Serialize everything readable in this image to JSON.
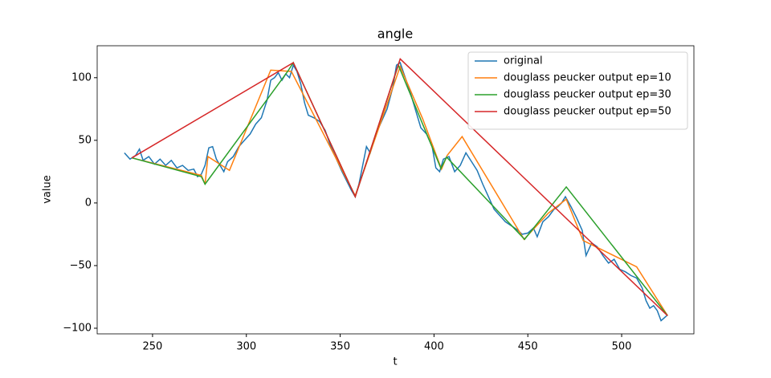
{
  "chart_data": {
    "type": "line",
    "title": "angle",
    "x_label": "t",
    "y_label": "value",
    "xlim": [
      220.5,
      538.5
    ],
    "ylim": [
      -104.5,
      125.5
    ],
    "xticks": [
      250,
      300,
      350,
      400,
      450,
      500
    ],
    "yticks": [
      {
        "value": -100,
        "label": "−100"
      },
      {
        "value": -50,
        "label": "−50"
      },
      0,
      50,
      100
    ],
    "legend": "upper right",
    "series": [
      {
        "name": "original",
        "color": "#1f77b4",
        "x": [
          235,
          238,
          241,
          243,
          245,
          248,
          251,
          254,
          257,
          260,
          263,
          266,
          269,
          272,
          274,
          276,
          278,
          280,
          282,
          284,
          286,
          288,
          290,
          293,
          296,
          299,
          302,
          305,
          308,
          311,
          313,
          315,
          317,
          319,
          321,
          323,
          325,
          327,
          329,
          331,
          333,
          336,
          339,
          342,
          345,
          348,
          351,
          354,
          356,
          358,
          360,
          362,
          364,
          366,
          369,
          372,
          375,
          378,
          380,
          382,
          384,
          387,
          390,
          393,
          396,
          399,
          401,
          403,
          405,
          408,
          411,
          414,
          417,
          420,
          423,
          426,
          429,
          432,
          435,
          438,
          441,
          444,
          447,
          450,
          453,
          455,
          458,
          461,
          464,
          466,
          468,
          470,
          473,
          476,
          479,
          481,
          484,
          487,
          490,
          493,
          496,
          499,
          502,
          505,
          508,
          511,
          513,
          515,
          517,
          519,
          521,
          524
        ],
        "values": [
          40,
          35,
          38,
          43,
          34,
          37,
          31,
          35,
          30,
          34,
          28,
          30,
          26,
          27,
          21,
          23,
          30,
          44,
          45,
          35,
          30,
          25,
          33,
          37,
          45,
          50,
          55,
          63,
          68,
          82,
          98,
          100,
          104,
          98,
          103,
          100,
          110,
          105,
          95,
          80,
          70,
          68,
          65,
          58,
          45,
          35,
          25,
          16,
          10,
          5,
          15,
          30,
          45,
          40,
          55,
          65,
          75,
          92,
          110,
          112,
          103,
          90,
          75,
          60,
          55,
          45,
          28,
          25,
          35,
          37,
          25,
          30,
          40,
          33,
          26,
          15,
          5,
          -5,
          -10,
          -15,
          -18,
          -21,
          -25,
          -24,
          -20,
          -27,
          -15,
          -11,
          -5,
          -3,
          0,
          5,
          -3,
          -12,
          -22,
          -42,
          -32,
          -35,
          -42,
          -48,
          -45,
          -53,
          -55,
          -58,
          -60,
          -68,
          -78,
          -84,
          -82,
          -86,
          -94,
          -90
        ]
      },
      {
        "name": "douglass peucker output ep=10",
        "color": "#ff7f0e",
        "x": [
          239,
          276,
          278,
          279.5,
          291,
          313,
          324,
          358,
          382,
          394,
          404,
          407,
          415,
          448,
          461,
          470.5,
          479.5,
          508,
          524.5
        ],
        "values": [
          36,
          22,
          15,
          37,
          26,
          106,
          105,
          5.8,
          109,
          67,
          27,
          38,
          53,
          -29,
          -8,
          3,
          -30,
          -51,
          -90
        ]
      },
      {
        "name": "douglass peucker output ep=30",
        "color": "#2ca02c",
        "x": [
          239,
          276,
          278,
          322,
          325,
          358,
          381,
          403.7,
          406.7,
          448.3,
          470.5,
          524.5
        ],
        "values": [
          36,
          21,
          15,
          105,
          112,
          5,
          110,
          27.6,
          36.6,
          -29,
          12.8,
          -90
        ]
      },
      {
        "name": "douglass peucker output ep=50",
        "color": "#d62728",
        "x": [
          239,
          325,
          358,
          382,
          524.5
        ],
        "values": [
          36,
          112,
          5,
          115,
          -90
        ]
      }
    ]
  }
}
